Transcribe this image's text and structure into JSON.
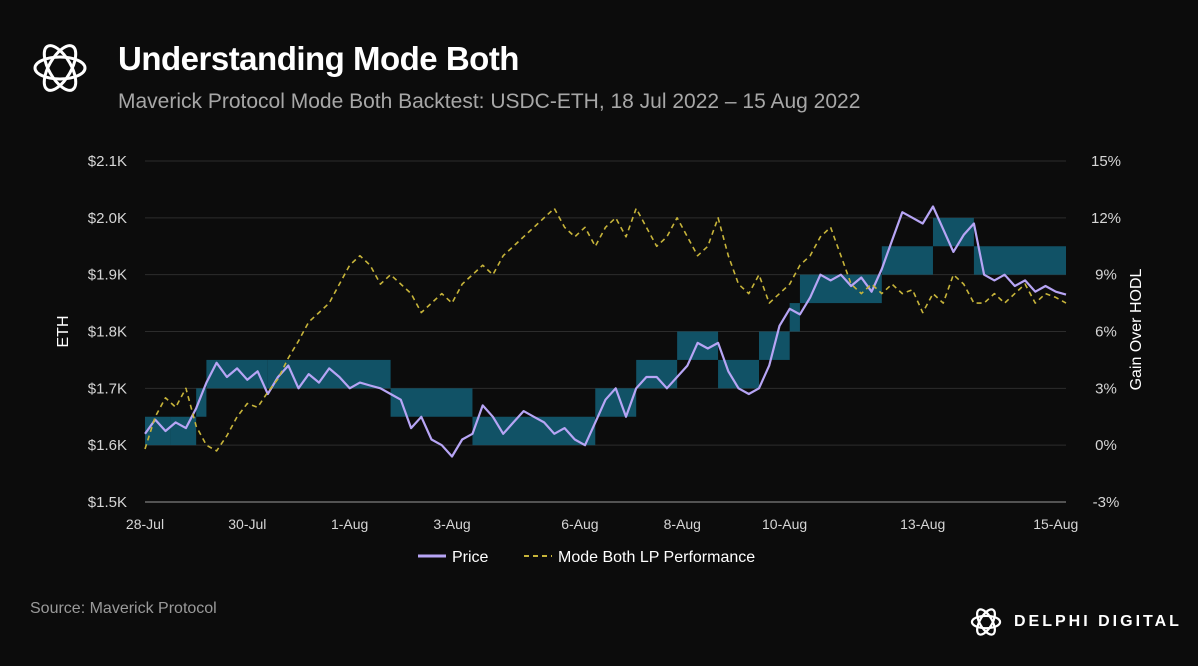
{
  "header": {
    "title": "Understanding Mode Both",
    "subtitle": "Maverick Protocol Mode Both Backtest: USDC-ETH, 18 Jul 2022 – 15 Aug 2022"
  },
  "footer": {
    "source": "Source: Maverick Protocol",
    "brand": "DELPHI DIGITAL"
  },
  "colors": {
    "background": "#0c0c0c",
    "price_line": "#b7a5f5",
    "lp_line": "#c7b43a",
    "bins": "#12566b",
    "grid": "#2c2c2c"
  },
  "chart_data": {
    "type": "line",
    "x_ticks": [
      "28-Jul",
      "30-Jul",
      "1-Aug",
      "3-Aug",
      "6-Aug",
      "8-Aug",
      "10-Aug",
      "13-Aug",
      "15-Aug"
    ],
    "x_domain": [
      "28-Jul",
      "15-Aug"
    ],
    "y_left": {
      "label": "ETH",
      "ticks": [
        "$2.1K",
        "$2.0K",
        "$1.9K",
        "$1.8K",
        "$1.7K",
        "$1.6K",
        "$1.5K"
      ],
      "range": [
        1500,
        2100
      ]
    },
    "y_right": {
      "label": "Gain Over HODL",
      "ticks": [
        "15%",
        "12%",
        "9%",
        "6%",
        "3%",
        "0%",
        "-3%"
      ],
      "range": [
        -3,
        15
      ]
    },
    "grid": true,
    "legend_position": "bottom-center",
    "series": [
      {
        "name": "Price",
        "axis": "left",
        "style": "solid",
        "x": [
          0,
          0.2,
          0.4,
          0.6,
          0.8,
          1.0,
          1.2,
          1.4,
          1.6,
          1.8,
          2.0,
          2.2,
          2.4,
          2.6,
          2.8,
          3.0,
          3.2,
          3.4,
          3.6,
          3.8,
          4.0,
          4.2,
          4.4,
          4.6,
          4.8,
          5.0,
          5.2,
          5.4,
          5.6,
          5.8,
          6.0,
          6.2,
          6.4,
          6.6,
          6.8,
          7.0,
          7.2,
          7.4,
          7.6,
          7.8,
          8.0,
          8.2,
          8.4,
          8.6,
          8.8,
          9.0,
          9.2,
          9.4,
          9.6,
          9.8,
          10.0,
          10.2,
          10.4,
          10.6,
          10.8,
          11.0,
          11.2,
          11.4,
          11.6,
          11.8,
          12.0,
          12.2,
          12.4,
          12.6,
          12.8,
          13.0,
          13.2,
          13.4,
          13.6,
          13.8,
          14.0,
          14.2,
          14.4,
          14.6,
          14.8,
          15.0,
          15.2,
          15.4,
          15.6,
          15.8,
          16.0,
          16.2,
          16.4,
          16.6,
          16.8,
          17.0,
          17.2,
          17.4,
          17.6,
          17.8,
          18.0
        ],
        "values": [
          1620,
          1645,
          1625,
          1640,
          1630,
          1665,
          1710,
          1745,
          1720,
          1735,
          1715,
          1730,
          1690,
          1720,
          1740,
          1700,
          1725,
          1710,
          1735,
          1720,
          1700,
          1710,
          1705,
          1700,
          1690,
          1680,
          1630,
          1650,
          1610,
          1600,
          1580,
          1610,
          1620,
          1670,
          1650,
          1620,
          1640,
          1660,
          1650,
          1640,
          1620,
          1630,
          1610,
          1600,
          1640,
          1680,
          1700,
          1650,
          1700,
          1720,
          1720,
          1700,
          1720,
          1740,
          1780,
          1770,
          1780,
          1730,
          1700,
          1690,
          1700,
          1740,
          1810,
          1840,
          1830,
          1860,
          1900,
          1890,
          1900,
          1880,
          1895,
          1870,
          1910,
          1960,
          2010,
          2000,
          1990,
          2020,
          1980,
          1940,
          1970,
          1990,
          1900,
          1890,
          1900,
          1880,
          1890,
          1870,
          1880,
          1870,
          1865
        ]
      },
      {
        "name": "Mode Both LP Performance",
        "axis": "right",
        "style": "dashed",
        "x": [
          0,
          0.2,
          0.4,
          0.6,
          0.8,
          1.0,
          1.2,
          1.4,
          1.6,
          1.8,
          2.0,
          2.2,
          2.4,
          2.6,
          2.8,
          3.0,
          3.2,
          3.4,
          3.6,
          3.8,
          4.0,
          4.2,
          4.4,
          4.6,
          4.8,
          5.0,
          5.2,
          5.4,
          5.6,
          5.8,
          6.0,
          6.2,
          6.4,
          6.6,
          6.8,
          7.0,
          7.2,
          7.4,
          7.6,
          7.8,
          8.0,
          8.2,
          8.4,
          8.6,
          8.8,
          9.0,
          9.2,
          9.4,
          9.6,
          9.8,
          10.0,
          10.2,
          10.4,
          10.6,
          10.8,
          11.0,
          11.2,
          11.4,
          11.6,
          11.8,
          12.0,
          12.2,
          12.4,
          12.6,
          12.8,
          13.0,
          13.2,
          13.4,
          13.6,
          13.8,
          14.0,
          14.2,
          14.4,
          14.6,
          14.8,
          15.0,
          15.2,
          15.4,
          15.6,
          15.8,
          16.0,
          16.2,
          16.4,
          16.6,
          16.8,
          17.0,
          17.2,
          17.4,
          17.6,
          17.8,
          18.0
        ],
        "values": [
          -0.2,
          1.5,
          2.5,
          2.0,
          3.0,
          1.0,
          0.0,
          -0.3,
          0.5,
          1.5,
          2.2,
          2.0,
          2.8,
          3.5,
          4.6,
          5.5,
          6.5,
          7.0,
          7.5,
          8.5,
          9.5,
          10.0,
          9.5,
          8.5,
          9.0,
          8.5,
          8.0,
          7.0,
          7.5,
          8.0,
          7.5,
          8.5,
          9.0,
          9.5,
          9.0,
          10.0,
          10.5,
          11.0,
          11.5,
          12.0,
          12.5,
          11.5,
          11.0,
          11.5,
          10.5,
          11.5,
          12.0,
          11.0,
          12.5,
          11.5,
          10.5,
          11.0,
          12.0,
          11.0,
          10.0,
          10.5,
          12.0,
          10.0,
          8.5,
          8.0,
          9.0,
          7.5,
          8.0,
          8.5,
          9.5,
          10.0,
          11.0,
          11.5,
          10.0,
          8.5,
          8.0,
          8.5,
          8.0,
          8.5,
          8.0,
          8.2,
          7.0,
          8.0,
          7.5,
          9.0,
          8.5,
          7.5,
          7.5,
          8.0,
          7.5,
          8.0,
          8.5,
          7.5,
          8.0,
          7.8,
          7.5
        ]
      }
    ],
    "bins": [
      {
        "x0": 0.0,
        "x1": 0.5,
        "low": 1600,
        "high": 1650
      },
      {
        "x0": 0.5,
        "x1": 1.0,
        "low": 1600,
        "high": 1650
      },
      {
        "x0": 1.0,
        "x1": 1.2,
        "low": 1650,
        "high": 1700
      },
      {
        "x0": 1.2,
        "x1": 2.4,
        "low": 1700,
        "high": 1750
      },
      {
        "x0": 2.4,
        "x1": 4.8,
        "low": 1700,
        "high": 1750
      },
      {
        "x0": 4.8,
        "x1": 6.4,
        "low": 1650,
        "high": 1700
      },
      {
        "x0": 6.4,
        "x1": 8.8,
        "low": 1600,
        "high": 1650
      },
      {
        "x0": 8.8,
        "x1": 9.6,
        "low": 1650,
        "high": 1700
      },
      {
        "x0": 9.6,
        "x1": 10.4,
        "low": 1700,
        "high": 1750
      },
      {
        "x0": 10.4,
        "x1": 11.2,
        "low": 1750,
        "high": 1800
      },
      {
        "x0": 11.2,
        "x1": 12.0,
        "low": 1700,
        "high": 1750
      },
      {
        "x0": 12.0,
        "x1": 12.6,
        "low": 1750,
        "high": 1800
      },
      {
        "x0": 12.6,
        "x1": 12.8,
        "low": 1800,
        "high": 1850
      },
      {
        "x0": 12.8,
        "x1": 14.4,
        "low": 1850,
        "high": 1900
      },
      {
        "x0": 14.4,
        "x1": 15.4,
        "low": 1900,
        "high": 1950
      },
      {
        "x0": 15.4,
        "x1": 16.2,
        "low": 1950,
        "high": 2000
      },
      {
        "x0": 16.2,
        "x1": 18.0,
        "low": 1900,
        "high": 1950
      }
    ]
  }
}
